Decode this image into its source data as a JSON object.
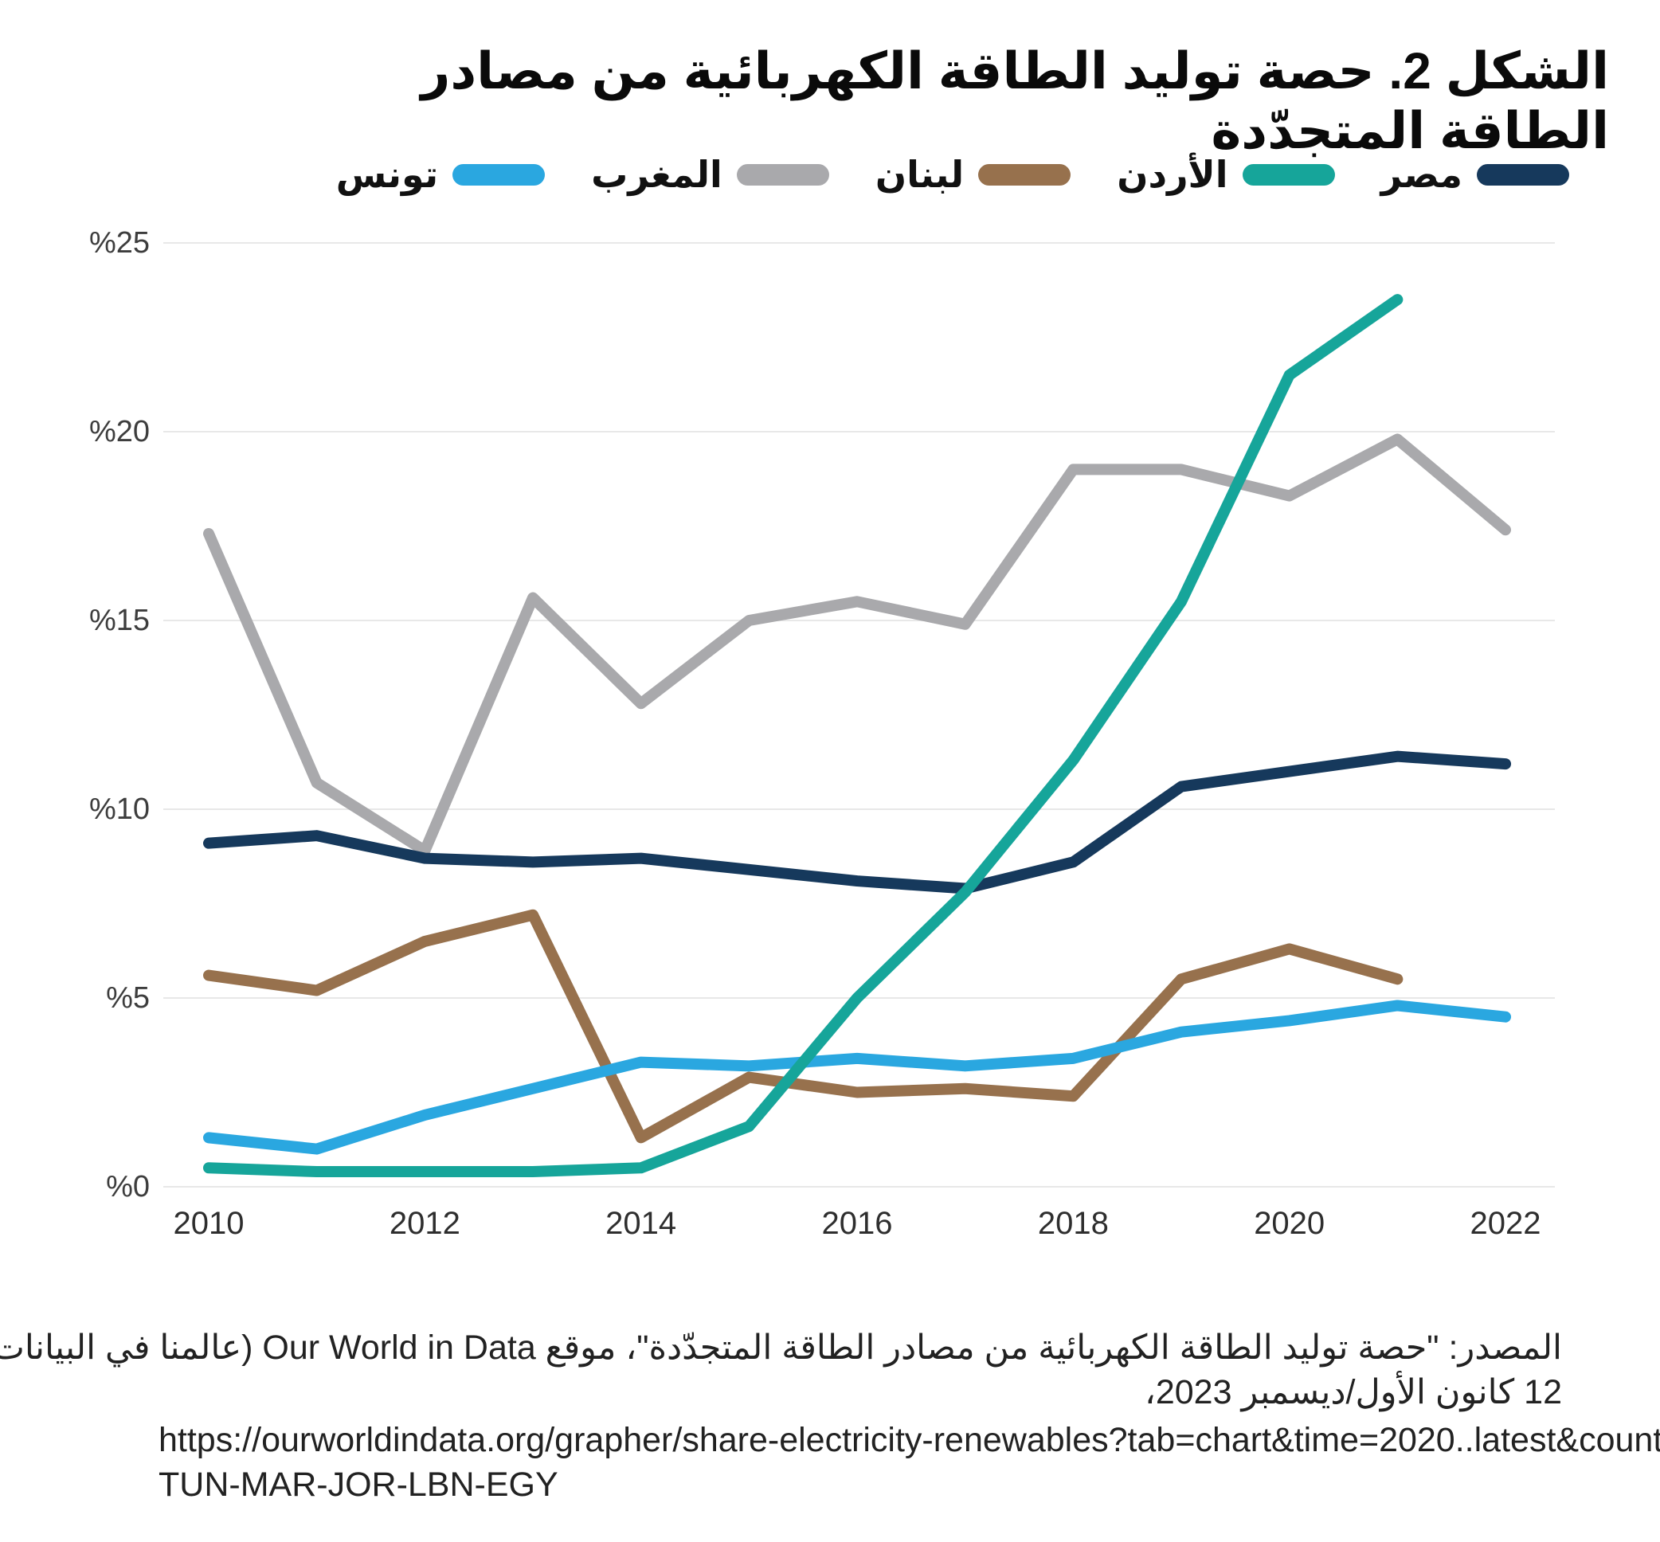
{
  "title": "الشكل 2. حصة توليد الطاقة الكهربائية من مصادر الطاقة المتجدّدة",
  "legend": [
    {
      "key": "egypt",
      "label": "مصر",
      "color": "#16395c"
    },
    {
      "key": "jordan",
      "label": "الأردن",
      "color": "#16a59a"
    },
    {
      "key": "lebanon",
      "label": "لبنان",
      "color": "#97714d"
    },
    {
      "key": "morocco",
      "label": "المغرب",
      "color": "#a9a9ac"
    },
    {
      "key": "tunisia",
      "label": "تونس",
      "color": "#2aa7e0"
    }
  ],
  "chart_data": {
    "type": "line",
    "title": "الشكل 2. حصة توليد الطاقة الكهربائية من مصادر الطاقة المتجدّدة",
    "x": [
      2010,
      2011,
      2012,
      2013,
      2014,
      2015,
      2016,
      2017,
      2018,
      2019,
      2020,
      2021,
      2022
    ],
    "series": [
      {
        "key": "morocco",
        "name": "المغرب",
        "color": "#a9a9ac",
        "values": [
          17.3,
          10.7,
          8.9,
          15.6,
          12.8,
          15.0,
          15.5,
          14.9,
          19.0,
          19.0,
          18.3,
          19.8,
          17.4
        ]
      },
      {
        "key": "lebanon",
        "name": "لبنان",
        "color": "#97714d",
        "values": [
          5.6,
          5.2,
          6.5,
          7.2,
          1.3,
          2.9,
          2.5,
          2.6,
          2.4,
          5.5,
          6.3,
          5.5,
          null
        ]
      },
      {
        "key": "tunisia",
        "name": "تونس",
        "color": "#2aa7e0",
        "values": [
          1.3,
          1.0,
          1.9,
          2.6,
          3.3,
          3.2,
          3.4,
          3.2,
          3.4,
          4.1,
          4.4,
          4.8,
          4.5
        ]
      },
      {
        "key": "egypt",
        "name": "مصر",
        "color": "#16395c",
        "values": [
          9.1,
          9.3,
          8.7,
          8.6,
          8.7,
          8.4,
          8.1,
          7.9,
          8.6,
          10.6,
          11.0,
          11.4,
          11.2
        ]
      },
      {
        "key": "jordan",
        "name": "الأردن",
        "color": "#16a59a",
        "values": [
          0.5,
          0.4,
          0.4,
          0.4,
          0.5,
          1.6,
          5.0,
          7.8,
          11.3,
          15.5,
          21.5,
          23.5,
          null
        ]
      }
    ],
    "ylim": [
      0,
      25
    ],
    "y_ticks": [
      {
        "value": 0,
        "label": "%0"
      },
      {
        "value": 5,
        "label": "%5"
      },
      {
        "value": 10,
        "label": "%10"
      },
      {
        "value": 15,
        "label": "%15"
      },
      {
        "value": 20,
        "label": "%20"
      },
      {
        "value": 25,
        "label": "%25"
      }
    ],
    "x_ticks": [
      {
        "value": 2010,
        "label": "2010"
      },
      {
        "value": 2012,
        "label": "2012"
      },
      {
        "value": 2014,
        "label": "2014"
      },
      {
        "value": 2016,
        "label": "2016"
      },
      {
        "value": 2018,
        "label": "2018"
      },
      {
        "value": 2020,
        "label": "2020"
      },
      {
        "value": 2022,
        "label": "2022"
      }
    ],
    "grid": "horizontal-only",
    "grid_color": "#e8e8e8",
    "legend_position": "top"
  },
  "source": {
    "line1": "المصدر: \"حصة توليد الطاقة الكهربائية من مصادر الطاقة المتجدّدة\"، موقع Our World in Data (عالمنا في البيانات)،",
    "line2": "12 كانون الأول/ديسمبر 2023،",
    "url_line1": "https://ourworldindata.org/grapher/share-electricity-renewables?tab=chart&time=2020..latest&country=",
    "url_line2": "TUN-MAR-JOR-LBN-EGY"
  }
}
